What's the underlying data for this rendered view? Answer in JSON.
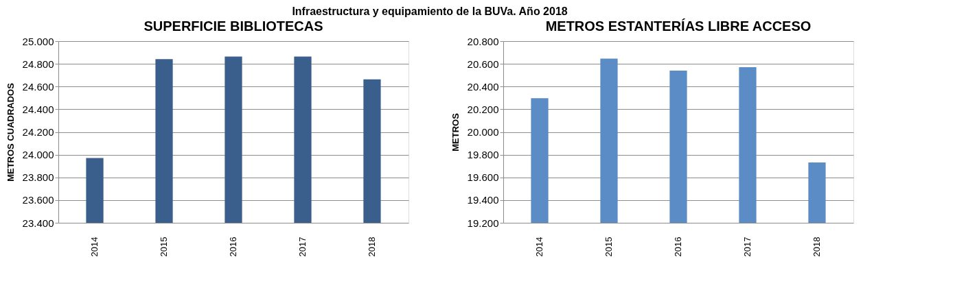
{
  "chart_data": [
    {
      "type": "bar",
      "title": "SUPERFICIE BIBLIOTECAS",
      "ylabel": "METROS CUADRADOS",
      "categories": [
        "2014",
        "2015",
        "2016",
        "2017",
        "2018"
      ],
      "values": [
        23970,
        24841,
        24864,
        24864,
        24664
      ],
      "color": "#3b5f8c",
      "ylim": [
        23400,
        25000
      ],
      "yticks": [
        {
          "value": 23400,
          "label": "23.400"
        },
        {
          "value": 23600,
          "label": "23.600"
        },
        {
          "value": 23800,
          "label": "23.800"
        },
        {
          "value": 24000,
          "label": "24.000"
        },
        {
          "value": 24200,
          "label": "24.200"
        },
        {
          "value": 24400,
          "label": "24.400"
        },
        {
          "value": 24600,
          "label": "24.600"
        },
        {
          "value": 24800,
          "label": "24.800"
        },
        {
          "value": 25000,
          "label": "25.000"
        }
      ],
      "grid": "y",
      "annotations": [
        "Infraestructura y equipamiento de la BUVa. Año 2018"
      ]
    },
    {
      "type": "bar",
      "title": "METROS ESTANTERÍAS LIBRE ACCESO",
      "ylabel": "METROS",
      "categories": [
        "2014",
        "2015",
        "2016",
        "2017",
        "2018"
      ],
      "values": [
        20297,
        20646,
        20540,
        20570,
        19731
      ],
      "color": "#5b8cc6",
      "ylim": [
        19200,
        20800
      ],
      "yticks": [
        {
          "value": 19200,
          "label": "19.200"
        },
        {
          "value": 19400,
          "label": "19.400"
        },
        {
          "value": 19600,
          "label": "19.600"
        },
        {
          "value": 19800,
          "label": "19.800"
        },
        {
          "value": 20000,
          "label": "20.000"
        },
        {
          "value": 20200,
          "label": "20.200"
        },
        {
          "value": 20400,
          "label": "20.400"
        },
        {
          "value": 20600,
          "label": "20.600"
        },
        {
          "value": 20800,
          "label": "20.800"
        }
      ],
      "grid": "y"
    }
  ]
}
